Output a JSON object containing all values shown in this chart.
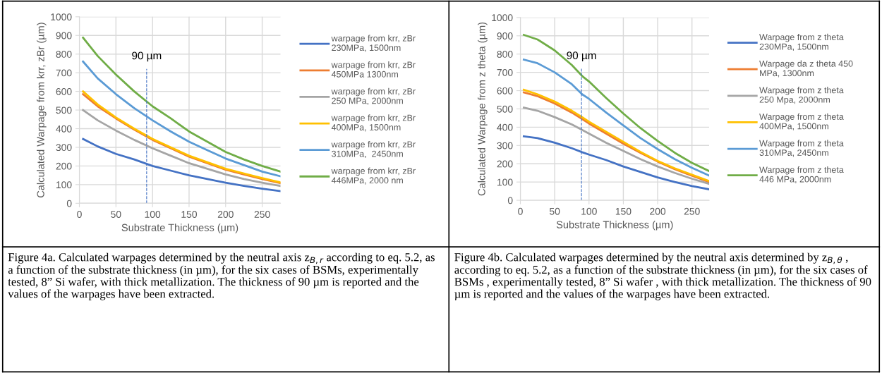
{
  "chart_data": [
    {
      "type": "line",
      "xlabel": "Substrate Thickness (µm)",
      "ylabel": "Calculated Warpage from krr, zBr (µm)",
      "x": [
        5,
        25,
        50,
        75,
        100,
        125,
        150,
        175,
        200,
        225,
        250,
        275
      ],
      "xlim": [
        0,
        275
      ],
      "xticks": [
        0,
        50,
        100,
        150,
        200,
        250
      ],
      "ylim": [
        0,
        1000
      ],
      "yticks": [
        0,
        100,
        200,
        300,
        400,
        500,
        600,
        700,
        800,
        900,
        1000
      ],
      "grid": true,
      "legend": "right",
      "line_style": "solid",
      "marker": "none",
      "series": [
        {
          "name": "warpage from krr, zBr\n230MPa, 1500nm",
          "color": "#4472c4",
          "values": [
            345,
            305,
            265,
            235,
            200,
            175,
            150,
            130,
            110,
            93,
            78,
            65
          ]
        },
        {
          "name": "warpage from krr, zBr\n450MPa 1300nm",
          "color": "#ed7d31",
          "values": [
            585,
            520,
            455,
            395,
            340,
            295,
            250,
            215,
            180,
            155,
            130,
            108
          ]
        },
        {
          "name": "warpage from krr, zBr\n250 MPa, 2000nm",
          "color": "#a5a5a5",
          "values": [
            500,
            445,
            390,
            340,
            295,
            255,
            215,
            185,
            155,
            130,
            110,
            93
          ]
        },
        {
          "name": "warpage from krr, zBr\n400MPa, 1500nm",
          "color": "#ffc000",
          "values": [
            600,
            530,
            460,
            400,
            345,
            300,
            255,
            220,
            185,
            160,
            135,
            112
          ]
        },
        {
          "name": "warpage from krr, zBr\n310MPa,  2450nm",
          "color": "#5b9bd5",
          "values": [
            760,
            670,
            585,
            510,
            445,
            385,
            330,
            285,
            240,
            205,
            170,
            145
          ]
        },
        {
          "name": "warpage from krr, zBr\n446MPa, 2000 nm",
          "color": "#70ad47",
          "values": [
            888,
            790,
            690,
            600,
            520,
            455,
            385,
            330,
            275,
            235,
            200,
            170
          ]
        }
      ],
      "ref_lines": [
        {
          "axis": "x",
          "value": 92,
          "label": "90 µm",
          "color": "#4472c4",
          "line_style": "dashed"
        }
      ],
      "annotations": [
        "Figure 4a. Calculated warpages determined by the neutral axis z$_{B,r}$ according to eq. 5.2, as a function of the substrate thickness (in µm), for the six cases of BSMs, experimentally tested, 8” Si wafer, with thick metallization. The thickness of 90 µm is reported and the values of the warpages have been extracted."
      ]
    },
    {
      "type": "line",
      "xlabel": "Substrate Thickness (µm)",
      "ylabel": "Calculated Warpage from z theta (µm)",
      "x": [
        5,
        25,
        50,
        75,
        90,
        100,
        125,
        150,
        175,
        200,
        225,
        250,
        275
      ],
      "xlim": [
        0,
        275
      ],
      "xticks": [
        0,
        50,
        100,
        150,
        200,
        250
      ],
      "ylim": [
        0,
        1000
      ],
      "yticks": [
        0,
        100,
        200,
        300,
        400,
        500,
        600,
        700,
        800,
        900,
        1000
      ],
      "grid": true,
      "legend": "right",
      "line_style": "solid",
      "marker": "none",
      "series": [
        {
          "name": "Warpage from z theta\n230MPa, 1500nm",
          "color": "#4472c4",
          "values": [
            350,
            340,
            315,
            285,
            263,
            250,
            220,
            185,
            155,
            125,
            100,
            78,
            60
          ]
        },
        {
          "name": "Warpage da z theta 450\nMPa, 1300nm",
          "color": "#ed7d31",
          "values": [
            590,
            570,
            530,
            480,
            445,
            420,
            365,
            310,
            260,
            212,
            170,
            135,
            100
          ]
        },
        {
          "name": "Warpage from z theta\n250 Mpa, 2000nm",
          "color": "#a5a5a5",
          "values": [
            507,
            490,
            455,
            415,
            385,
            365,
            315,
            270,
            225,
            185,
            150,
            118,
            90
          ]
        },
        {
          "name": "Warpage from z theta\n400MPa, 1500nm",
          "color": "#ffc000",
          "values": [
            605,
            580,
            540,
            490,
            455,
            430,
            375,
            320,
            265,
            215,
            175,
            140,
            105
          ]
        },
        {
          "name": "Warpage from z theta\n310MPa, 2450nm",
          "color": "#5b9bd5",
          "values": [
            770,
            750,
            700,
            635,
            580,
            555,
            480,
            410,
            340,
            280,
            225,
            178,
            135
          ]
        },
        {
          "name": "Warpage from z theta\n446 MPa, 2000nm",
          "color": "#70ad47",
          "values": [
            905,
            880,
            820,
            740,
            680,
            650,
            560,
            475,
            395,
            325,
            260,
            205,
            160
          ]
        }
      ],
      "ref_lines": [
        {
          "axis": "x",
          "value": 89,
          "label": "90 µm",
          "color": "#4472c4",
          "line_style": "dashed"
        }
      ],
      "annotations": [
        "Figure 4b. Calculated warpages determined by the neutral axis determined by z$_{B,θ}$ , according to eq. 5.2, as a function of the substrate thickness (in µm), for the six cases of BSMs , experimentally tested, 8” Si wafer , with thick metallization. The thickness of 90 µm is reported and the values of the warpages have been extracted."
      ]
    }
  ]
}
